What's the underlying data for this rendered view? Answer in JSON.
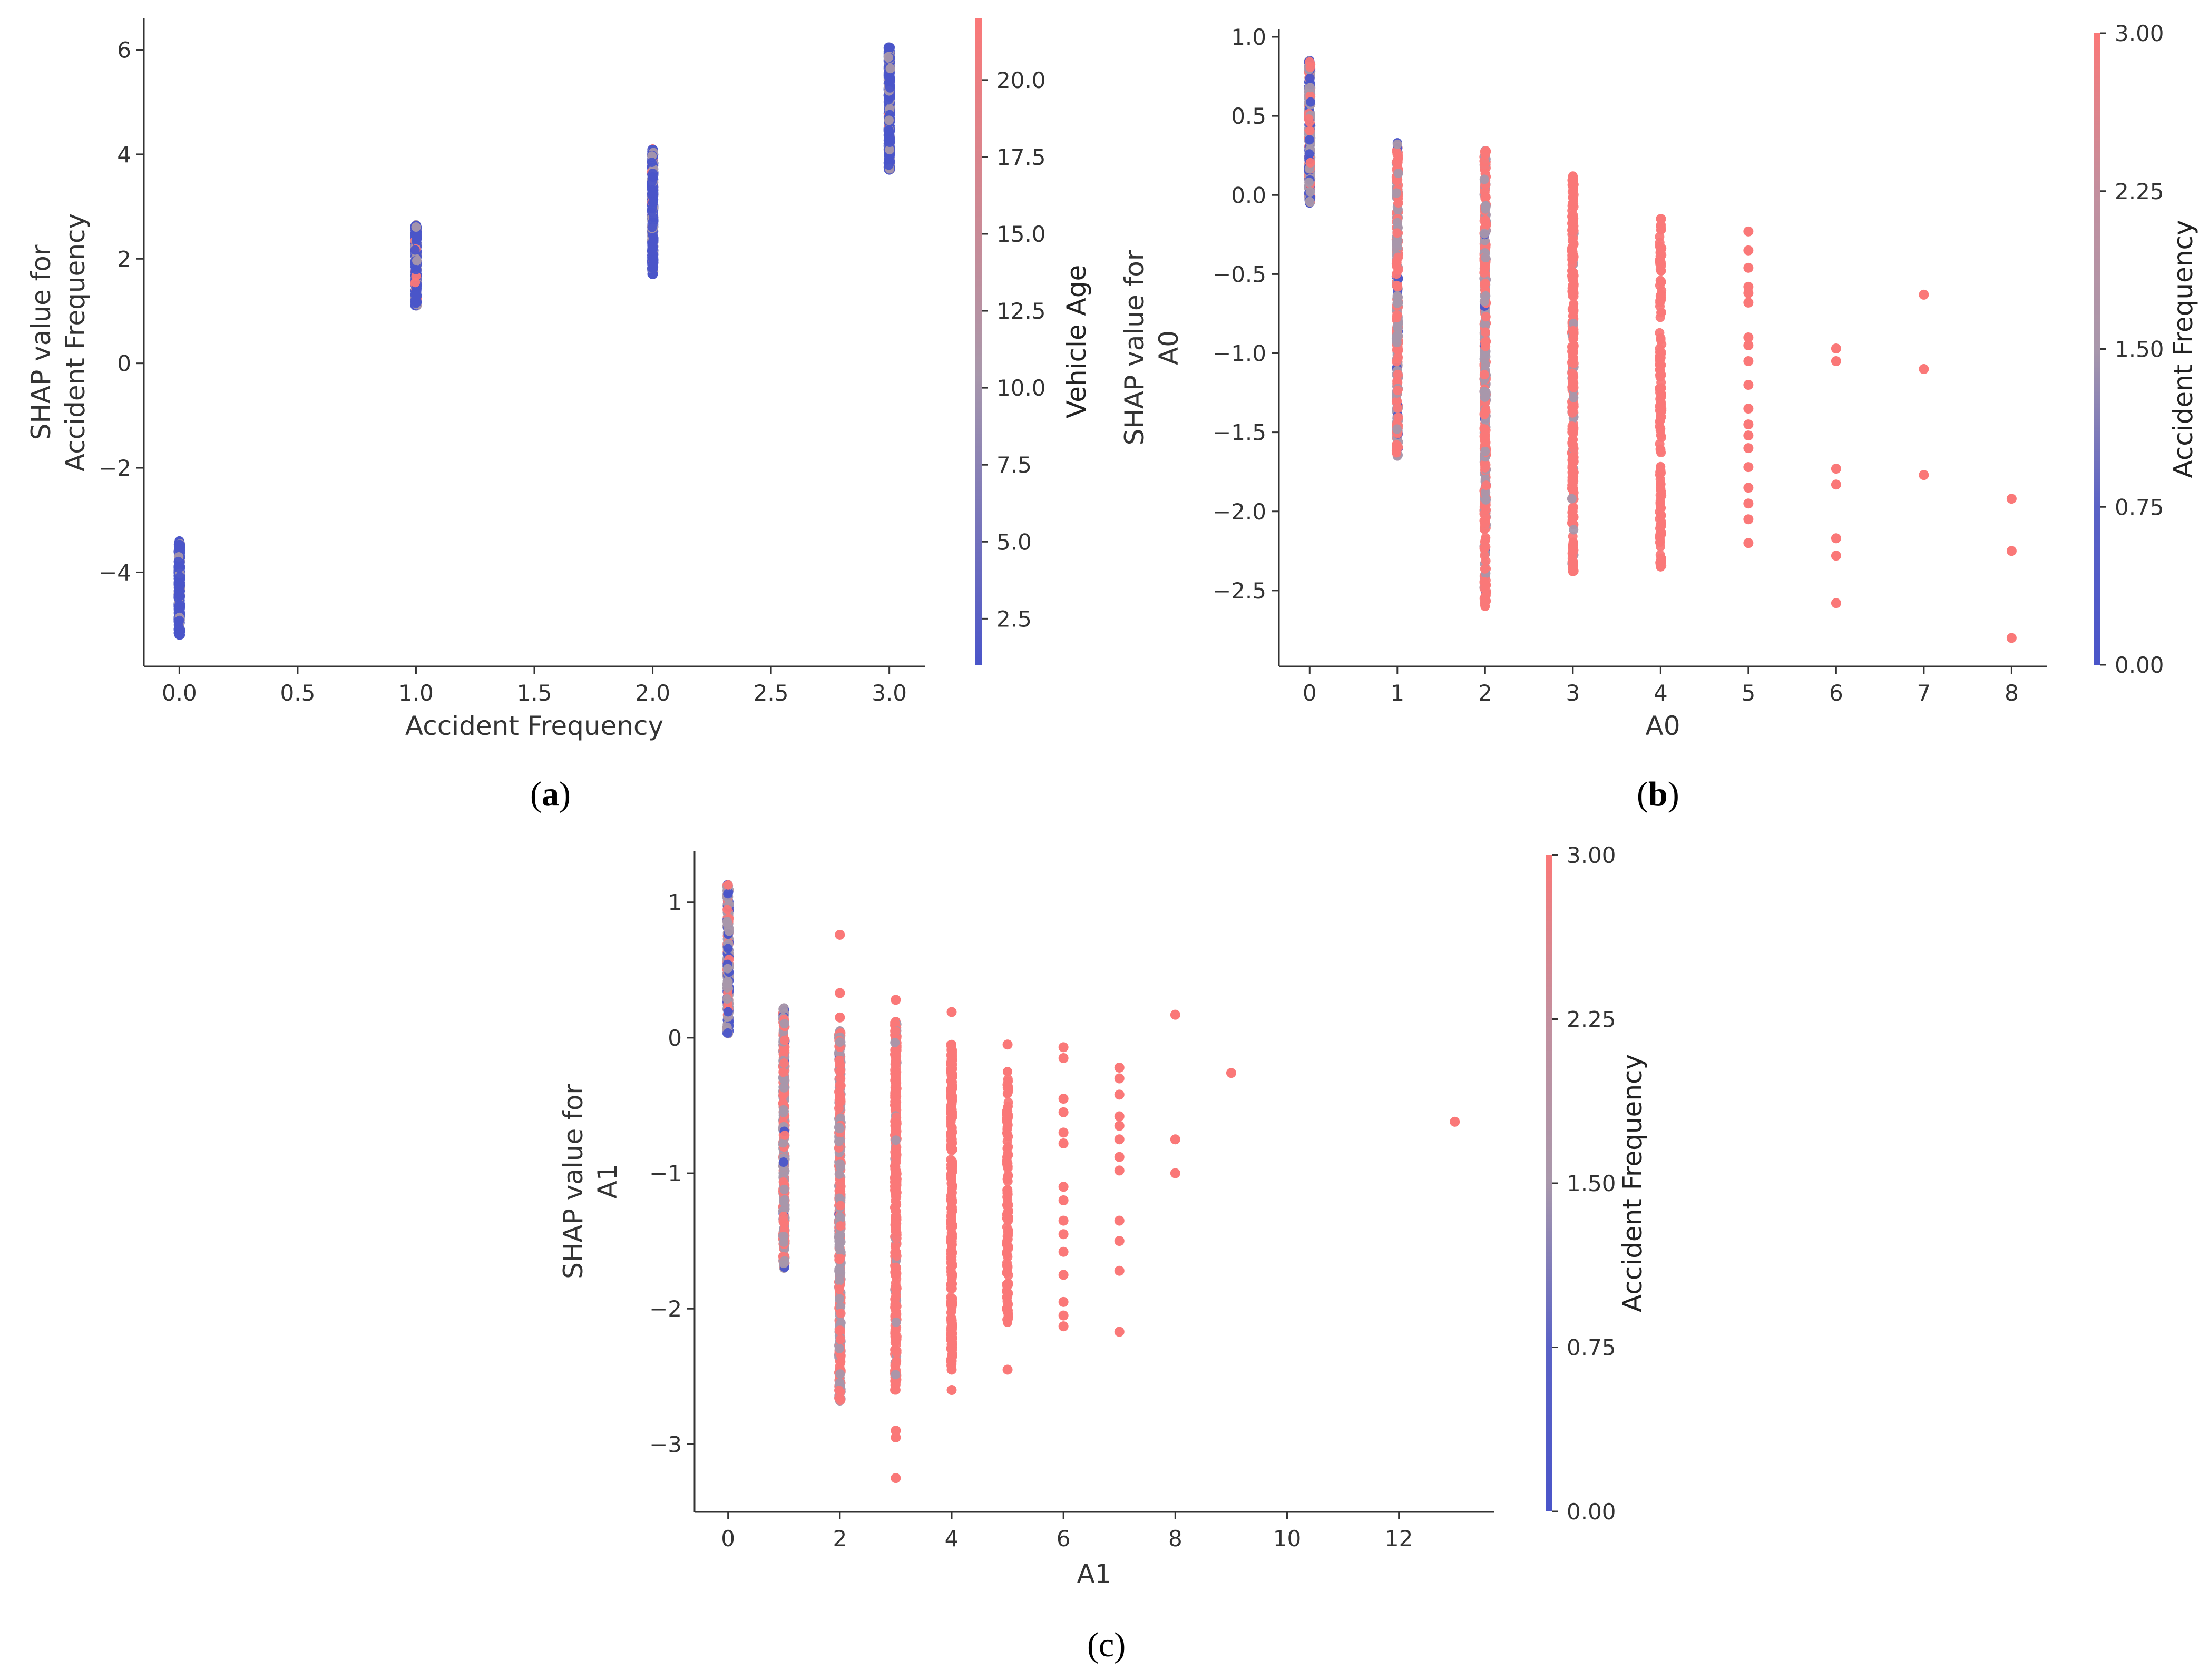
{
  "figure": {
    "caption_labels": [
      {
        "open": "(",
        "letter": "a",
        "close": ")"
      },
      {
        "open": "(",
        "letter": "b",
        "close": ")"
      },
      {
        "open": "(",
        "letter": "c",
        "close": ")"
      }
    ]
  },
  "colors": {
    "low": "#4a55c9",
    "mid": "#a897ab",
    "high": "#fa7878",
    "axis": "#333333"
  },
  "chart_data": [
    {
      "id": "a",
      "type": "scatter",
      "xlabel": "Accident Frequency",
      "ylabel": "SHAP value for\nAccident Frequency",
      "xlim": [
        -0.15,
        3.15
      ],
      "ylim": [
        -5.8,
        6.6
      ],
      "xticks": [
        0.0,
        0.5,
        1.0,
        1.5,
        2.0,
        2.5,
        3.0
      ],
      "xtick_labels": [
        "0.0",
        "0.5",
        "1.0",
        "1.5",
        "2.0",
        "2.5",
        "3.0"
      ],
      "yticks": [
        -4,
        -2,
        0,
        2,
        4,
        6
      ],
      "ytick_labels": [
        "−4",
        "−2",
        "0",
        "2",
        "4",
        "6"
      ],
      "colorbar": {
        "label": "Vehicle Age",
        "range": [
          1,
          22
        ],
        "ticks": [
          2.5,
          5.0,
          7.5,
          10.0,
          12.5,
          15.0,
          17.5,
          20.0
        ],
        "tick_labels": [
          "2.5",
          "5.0",
          "7.5",
          "10.0",
          "12.5",
          "15.0",
          "17.5",
          "20.0"
        ]
      },
      "series": [
        {
          "x": 0,
          "y_range": [
            -5.2,
            -3.4
          ],
          "color_mix": [
            0.88,
            0.1,
            0.02
          ],
          "samples": 420
        },
        {
          "x": 1,
          "y_range": [
            1.1,
            2.65
          ],
          "color_mix": [
            0.75,
            0.2,
            0.05
          ],
          "samples": 380
        },
        {
          "x": 2,
          "y_range": [
            1.7,
            4.1
          ],
          "color_mix": [
            0.75,
            0.22,
            0.03
          ],
          "samples": 480
        },
        {
          "x": 3,
          "y_range": [
            3.7,
            6.05
          ],
          "color_mix": [
            0.72,
            0.24,
            0.04
          ],
          "samples": 480
        }
      ]
    },
    {
      "id": "b",
      "type": "scatter",
      "xlabel": "A0",
      "ylabel": "SHAP value for\nA0",
      "xlim": [
        -0.35,
        8.4
      ],
      "ylim": [
        -2.98,
        1.05
      ],
      "xticks": [
        0,
        1,
        2,
        3,
        4,
        5,
        6,
        7,
        8
      ],
      "xtick_labels": [
        "0",
        "1",
        "2",
        "3",
        "4",
        "5",
        "6",
        "7",
        "8"
      ],
      "yticks": [
        1.0,
        0.5,
        0.0,
        -0.5,
        -1.0,
        -1.5,
        -2.0,
        -2.5
      ],
      "ytick_labels": [
        "1.0",
        "0.5",
        "0.0",
        "−0.5",
        "−1.0",
        "−1.5",
        "−2.0",
        "−2.5"
      ],
      "colorbar": {
        "label": "Accident Frequency",
        "range": [
          0,
          3
        ],
        "ticks": [
          0.0,
          0.75,
          1.5,
          2.25,
          3.0
        ],
        "tick_labels": [
          "0.00",
          "0.75",
          "1.50",
          "2.25",
          "3.00"
        ]
      },
      "series": [
        {
          "x": 0,
          "y_range": [
            -0.05,
            0.85
          ],
          "color_mix": [
            0.25,
            0.55,
            0.2
          ],
          "samples": 260
        },
        {
          "x": 1,
          "y_range": [
            -1.65,
            0.33
          ],
          "color_mix": [
            0.04,
            0.36,
            0.6
          ],
          "samples": 300
        },
        {
          "x": 2,
          "y_range": [
            -2.6,
            0.28
          ],
          "color_mix": [
            0.02,
            0.38,
            0.6
          ],
          "samples": 420
        },
        {
          "x": 3,
          "y_range": [
            -2.38,
            0.12
          ],
          "color_mix": [
            0,
            0.04,
            0.96
          ],
          "samples": 300
        },
        {
          "x": 4,
          "y_range": [
            -2.35,
            -0.15
          ],
          "color_mix": [
            0,
            0,
            1
          ],
          "samples": 150
        }
      ],
      "points": [
        {
          "x": 5,
          "y": -0.23
        },
        {
          "x": 5,
          "y": -0.35
        },
        {
          "x": 5,
          "y": -0.46
        },
        {
          "x": 5,
          "y": -0.58
        },
        {
          "x": 5,
          "y": -0.62
        },
        {
          "x": 5,
          "y": -0.68
        },
        {
          "x": 5,
          "y": -0.9
        },
        {
          "x": 5,
          "y": -0.95
        },
        {
          "x": 5,
          "y": -1.05
        },
        {
          "x": 5,
          "y": -1.2
        },
        {
          "x": 5,
          "y": -1.35
        },
        {
          "x": 5,
          "y": -1.45
        },
        {
          "x": 5,
          "y": -1.52
        },
        {
          "x": 5,
          "y": -1.6
        },
        {
          "x": 5,
          "y": -1.72
        },
        {
          "x": 5,
          "y": -1.85
        },
        {
          "x": 5,
          "y": -1.95
        },
        {
          "x": 5,
          "y": -2.05
        },
        {
          "x": 5,
          "y": -2.2
        },
        {
          "x": 6,
          "y": -0.97
        },
        {
          "x": 6,
          "y": -1.05
        },
        {
          "x": 6,
          "y": -1.73
        },
        {
          "x": 6,
          "y": -1.83
        },
        {
          "x": 6,
          "y": -2.17
        },
        {
          "x": 6,
          "y": -2.28
        },
        {
          "x": 6,
          "y": -2.58
        },
        {
          "x": 7,
          "y": -0.63
        },
        {
          "x": 7,
          "y": -1.1
        },
        {
          "x": 7,
          "y": -1.77
        },
        {
          "x": 8,
          "y": -1.92
        },
        {
          "x": 8,
          "y": -2.25
        },
        {
          "x": 8,
          "y": -2.8
        }
      ]
    },
    {
      "id": "c",
      "type": "scatter",
      "xlabel": "A1",
      "ylabel": "SHAP value for\nA1",
      "xlim": [
        -0.6,
        13.7
      ],
      "ylim": [
        -3.5,
        1.38
      ],
      "xticks": [
        0,
        2,
        4,
        6,
        8,
        10,
        12
      ],
      "xtick_labels": [
        "0",
        "2",
        "4",
        "6",
        "8",
        "10",
        "12"
      ],
      "yticks": [
        1,
        0,
        -1,
        -2,
        -3
      ],
      "ytick_labels": [
        "1",
        "0",
        "−1",
        "−2",
        "−3"
      ],
      "colorbar": {
        "label": "Accident Frequency",
        "range": [
          0,
          3
        ],
        "ticks": [
          0.0,
          0.75,
          1.5,
          2.25,
          3.0
        ],
        "tick_labels": [
          "0.00",
          "0.75",
          "1.50",
          "2.25",
          "3.00"
        ]
      },
      "series": [
        {
          "x": 0,
          "y_range": [
            0.03,
            1.13
          ],
          "color_mix": [
            0.25,
            0.55,
            0.2
          ],
          "samples": 280
        },
        {
          "x": 1,
          "y_range": [
            -1.7,
            0.22
          ],
          "color_mix": [
            0.02,
            0.55,
            0.43
          ],
          "samples": 320
        },
        {
          "x": 2,
          "y_range": [
            -2.68,
            0.05
          ],
          "color_mix": [
            0.01,
            0.42,
            0.57
          ],
          "samples": 440
        },
        {
          "x": 3,
          "y_range": [
            -2.6,
            0.12
          ],
          "color_mix": [
            0,
            0.03,
            0.97
          ],
          "samples": 320
        },
        {
          "x": 4,
          "y_range": [
            -2.45,
            -0.05
          ],
          "color_mix": [
            0,
            0,
            1
          ],
          "samples": 260
        },
        {
          "x": 5,
          "y_range": [
            -2.1,
            -0.25
          ],
          "color_mix": [
            0,
            0,
            1
          ],
          "samples": 140
        }
      ],
      "points": [
        {
          "x": 2,
          "y": 0.76
        },
        {
          "x": 2,
          "y": 0.33
        },
        {
          "x": 2,
          "y": 0.15
        },
        {
          "x": 3,
          "y": 0.28
        },
        {
          "x": 3,
          "y": -2.9
        },
        {
          "x": 3,
          "y": -2.95
        },
        {
          "x": 3,
          "y": -3.25
        },
        {
          "x": 4,
          "y": 0.19
        },
        {
          "x": 4,
          "y": -2.45
        },
        {
          "x": 4,
          "y": -2.6
        },
        {
          "x": 5,
          "y": -0.05
        },
        {
          "x": 5,
          "y": -2.45
        },
        {
          "x": 6,
          "y": -0.07
        },
        {
          "x": 6,
          "y": -0.15
        },
        {
          "x": 6,
          "y": -0.45
        },
        {
          "x": 6,
          "y": -0.55
        },
        {
          "x": 6,
          "y": -0.7
        },
        {
          "x": 6,
          "y": -0.78
        },
        {
          "x": 6,
          "y": -1.1
        },
        {
          "x": 6,
          "y": -1.2
        },
        {
          "x": 6,
          "y": -1.35
        },
        {
          "x": 6,
          "y": -1.45
        },
        {
          "x": 6,
          "y": -1.58
        },
        {
          "x": 6,
          "y": -1.75
        },
        {
          "x": 6,
          "y": -1.95
        },
        {
          "x": 6,
          "y": -2.05
        },
        {
          "x": 6,
          "y": -2.13
        },
        {
          "x": 7,
          "y": -0.22
        },
        {
          "x": 7,
          "y": -0.3
        },
        {
          "x": 7,
          "y": -0.42
        },
        {
          "x": 7,
          "y": -0.58
        },
        {
          "x": 7,
          "y": -0.65
        },
        {
          "x": 7,
          "y": -0.75
        },
        {
          "x": 7,
          "y": -0.88
        },
        {
          "x": 7,
          "y": -0.98
        },
        {
          "x": 7,
          "y": -1.35
        },
        {
          "x": 7,
          "y": -1.5
        },
        {
          "x": 7,
          "y": -1.72
        },
        {
          "x": 7,
          "y": -2.17
        },
        {
          "x": 8,
          "y": 0.17
        },
        {
          "x": 8,
          "y": -0.75
        },
        {
          "x": 8,
          "y": -1.0
        },
        {
          "x": 9,
          "y": -0.26
        },
        {
          "x": 13,
          "y": -0.62
        }
      ]
    }
  ]
}
